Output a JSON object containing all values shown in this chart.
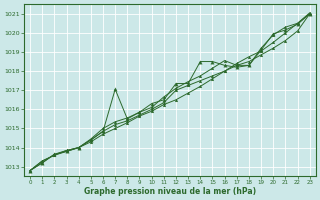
{
  "title": "Graphe pression niveau de la mer (hPa)",
  "bg_color": "#cce8e8",
  "grid_color": "#ffffff",
  "line_color": "#2d6a2d",
  "ylim": [
    1012.5,
    1021.5
  ],
  "xlim": [
    -0.5,
    23.5
  ],
  "yticks": [
    1013,
    1014,
    1015,
    1016,
    1017,
    1018,
    1019,
    1020,
    1021
  ],
  "xticks": [
    0,
    1,
    2,
    3,
    4,
    5,
    6,
    7,
    8,
    9,
    10,
    11,
    12,
    13,
    14,
    15,
    16,
    17,
    18,
    19,
    20,
    21,
    22,
    23
  ],
  "series": [
    [
      1012.8,
      1013.3,
      1013.6,
      1013.85,
      1014.0,
      1014.3,
      1014.7,
      1015.0,
      1015.3,
      1015.65,
      1015.9,
      1016.25,
      1016.5,
      1016.85,
      1017.2,
      1017.6,
      1018.0,
      1018.4,
      1018.75,
      1019.05,
      1019.5,
      1020.0,
      1020.5,
      1021.05
    ],
    [
      1012.8,
      1013.2,
      1013.65,
      1013.85,
      1014.0,
      1014.45,
      1015.0,
      1015.35,
      1015.55,
      1015.85,
      1016.1,
      1016.65,
      1017.1,
      1017.45,
      1017.75,
      1018.15,
      1018.55,
      1018.3,
      1018.3,
      1019.2,
      1019.9,
      1020.3,
      1020.5,
      1021.0
    ],
    [
      1012.8,
      1013.2,
      1013.65,
      1013.8,
      1014.0,
      1014.4,
      1014.85,
      1017.05,
      1015.5,
      1015.85,
      1016.3,
      1016.5,
      1017.35,
      1017.35,
      1018.5,
      1018.5,
      1018.3,
      1018.2,
      1018.3,
      1019.1,
      1019.95,
      1020.15,
      1020.45,
      1021.0
    ],
    [
      1012.8,
      1013.3,
      1013.6,
      1013.8,
      1014.0,
      1014.4,
      1014.85,
      1015.2,
      1015.4,
      1015.7,
      1016.0,
      1016.35,
      1017.0,
      1017.25,
      1017.5,
      1017.75,
      1018.0,
      1018.3,
      1018.5,
      1018.85,
      1019.2,
      1019.6,
      1020.1,
      1021.0
    ]
  ],
  "fig_width": 3.2,
  "fig_height": 2.0,
  "dpi": 100
}
